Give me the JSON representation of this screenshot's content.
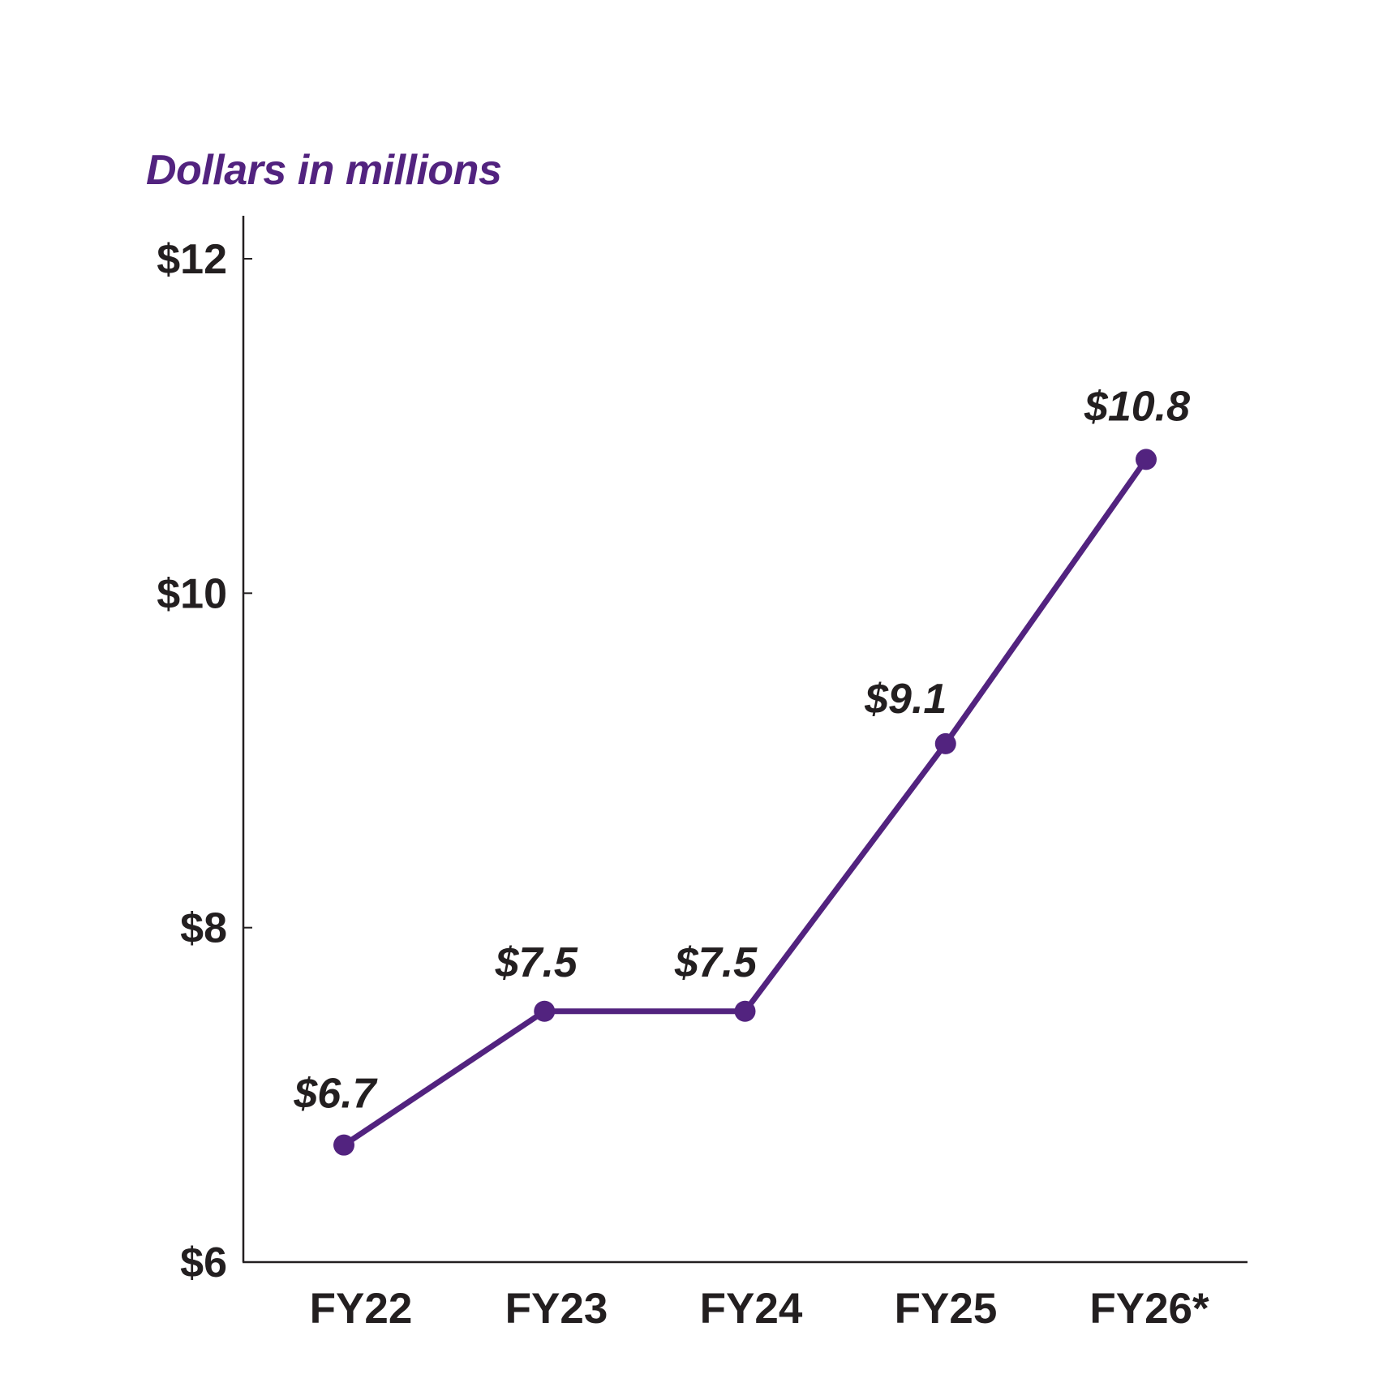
{
  "colors": {
    "series": "#52237F",
    "axis": "#231F20",
    "text": "#231F20",
    "title": "#52237F"
  },
  "chart_data": {
    "type": "line",
    "title": "Dollars in millions",
    "xlabel": "",
    "ylabel": "Dollars in millions",
    "categories": [
      "FY22",
      "FY23",
      "FY24",
      "FY25",
      "FY26*"
    ],
    "series": [
      {
        "name": "Dollars in millions",
        "values": [
          6.7,
          7.5,
          7.5,
          9.1,
          10.8
        ]
      }
    ],
    "data_labels": [
      "$6.7",
      "$7.5",
      "$7.5",
      "$9.1",
      "$10.8"
    ],
    "ylim": [
      6,
      12
    ],
    "yticks": [
      6,
      8,
      10,
      12
    ],
    "ytick_labels": [
      "$6",
      "$8",
      "$10",
      "$12"
    ],
    "grid": false,
    "legend": "none",
    "markers": true
  }
}
